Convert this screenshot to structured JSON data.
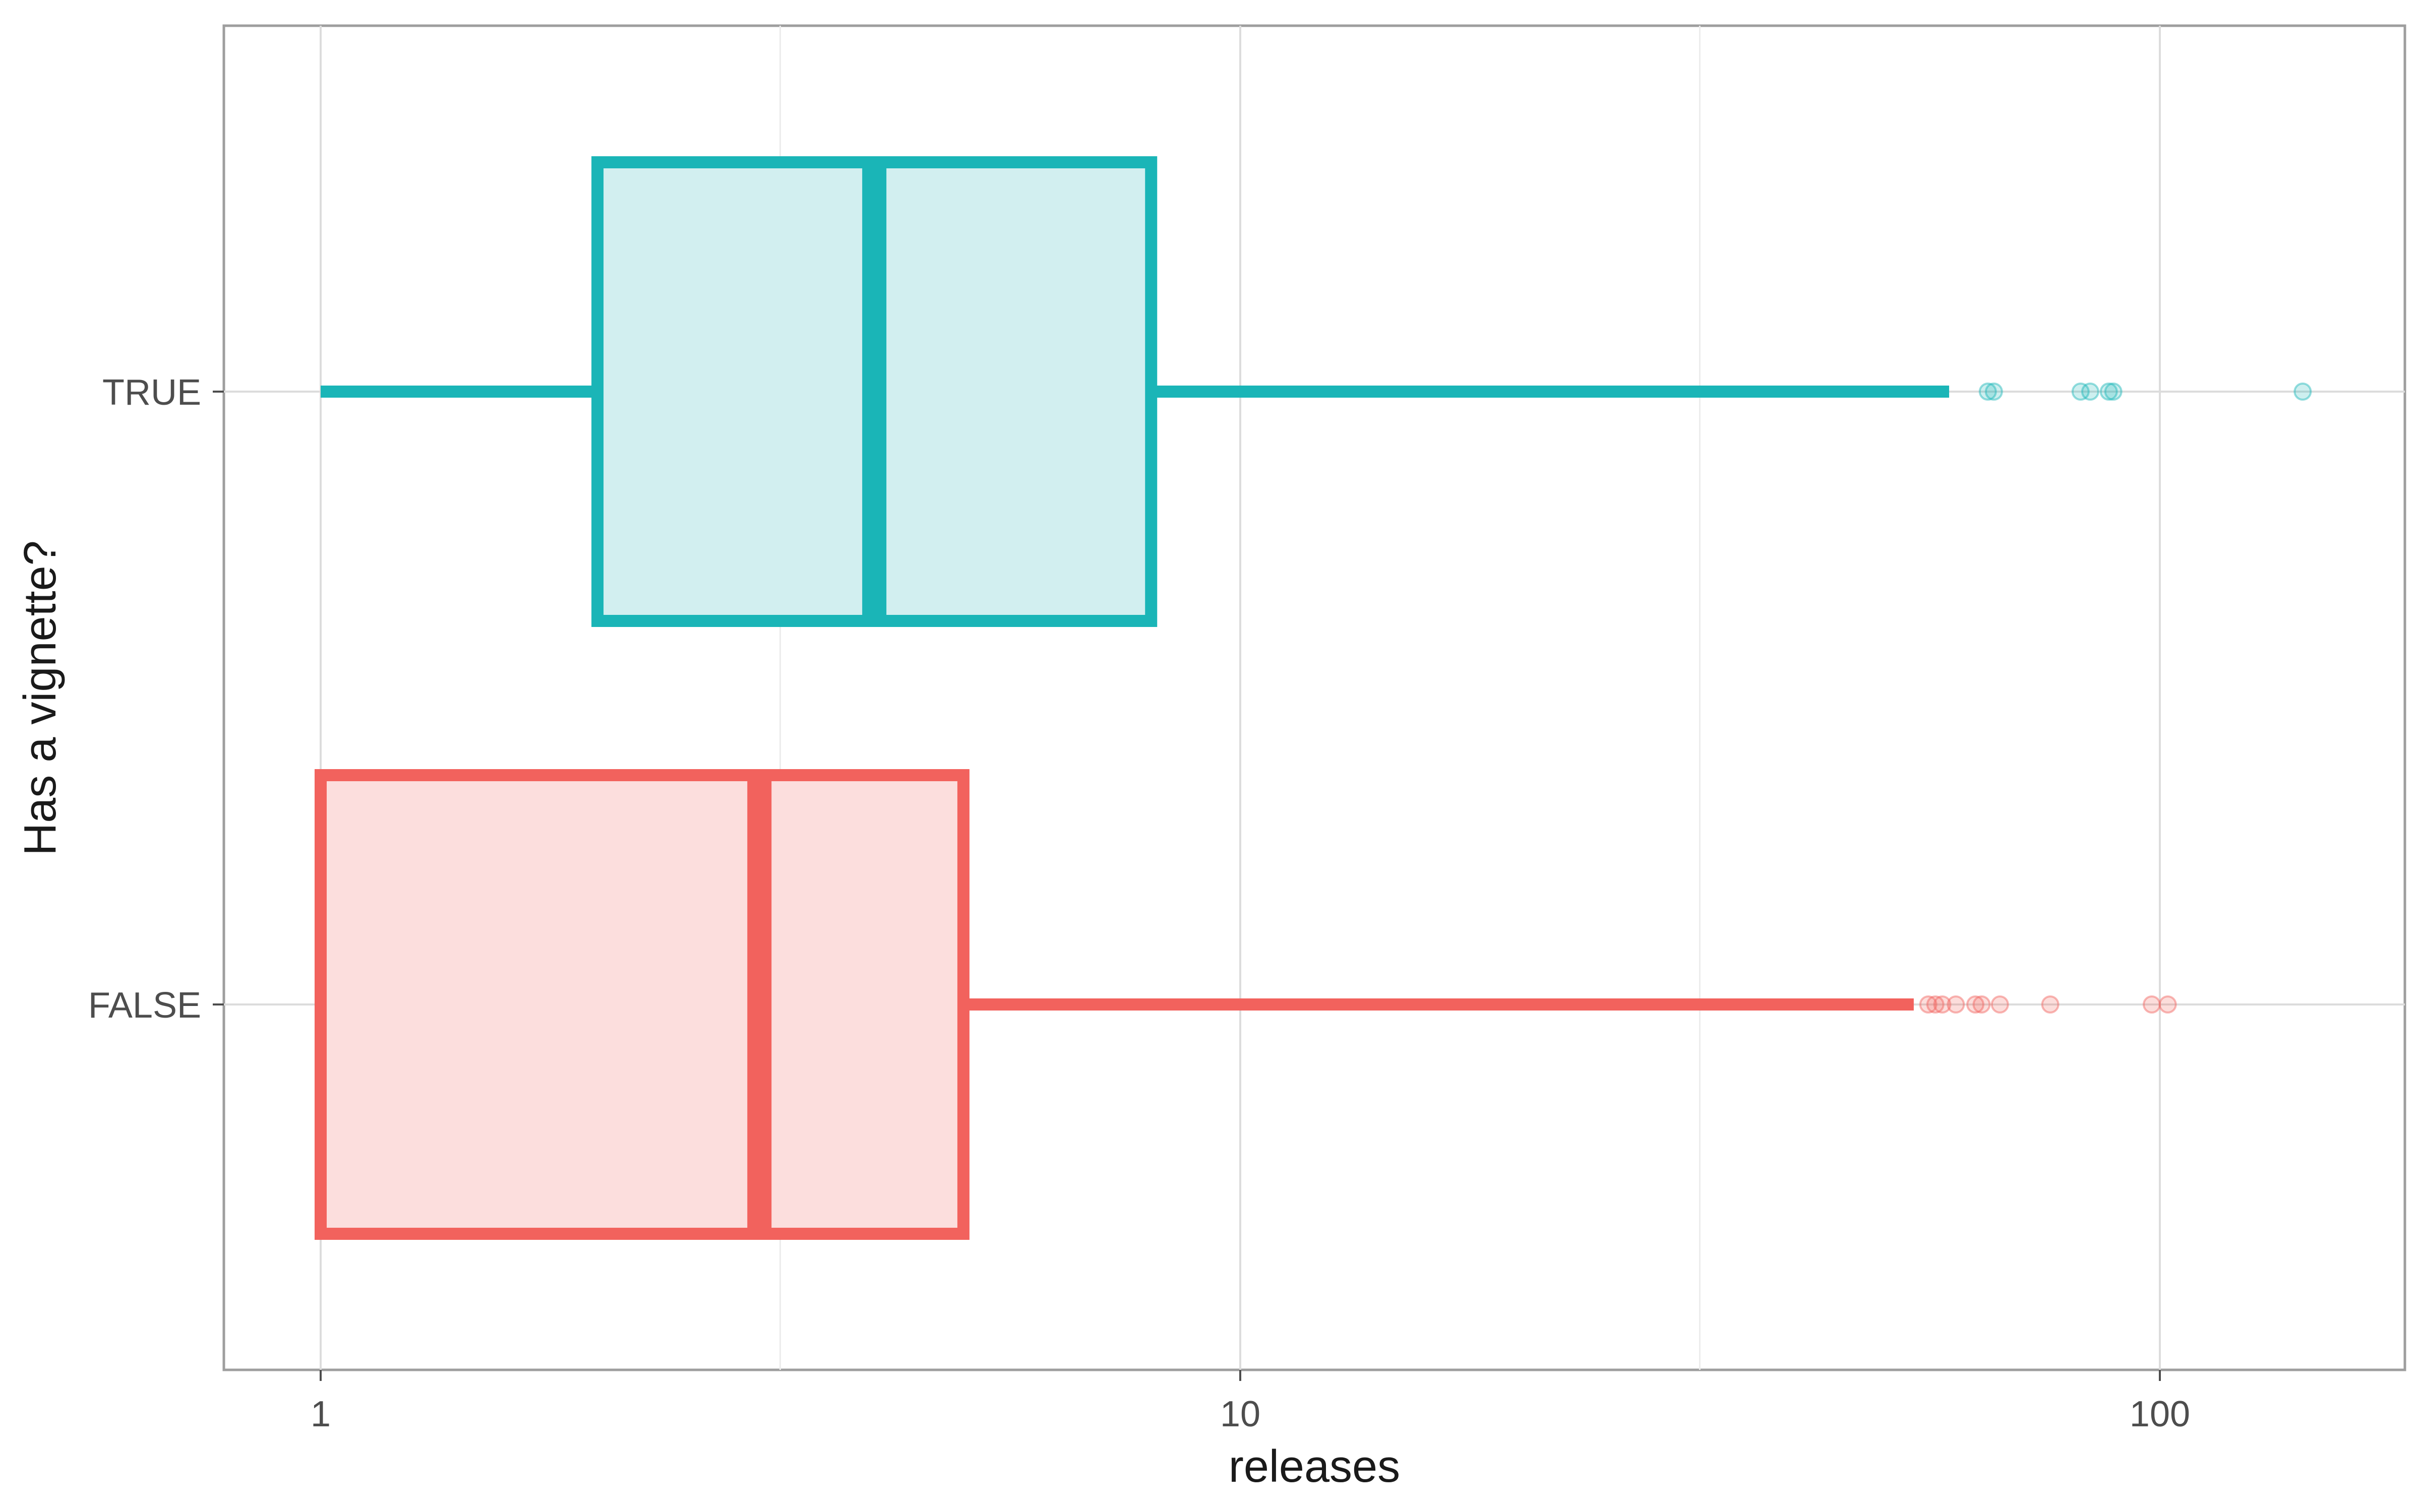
{
  "chart_data": {
    "type": "boxplot",
    "orientation": "horizontal",
    "xlabel": "releases",
    "ylabel": "Has a vignette?",
    "x_scale": "log10",
    "xlim": [
      0.78,
      170
    ],
    "x_ticks": [
      1,
      10,
      100
    ],
    "x_tick_labels": [
      "1",
      "10",
      "100"
    ],
    "x_minor_gridlines": [
      3.16,
      31.6
    ],
    "categories": [
      "TRUE",
      "FALSE"
    ],
    "grid": true,
    "legend": "none",
    "boxes": [
      {
        "category": "TRUE",
        "color": "#1AB5B7",
        "fill": "#D2EFF0",
        "whisker_low": 1,
        "q1": 2,
        "median": 4,
        "q3": 8,
        "whisker_high": 59,
        "outliers": [
          65,
          66,
          82,
          84,
          88,
          89,
          143
        ]
      },
      {
        "category": "FALSE",
        "color": "#F2625D",
        "fill": "#FCDEDD",
        "whisker_low": 1,
        "q1": 1,
        "median": 3,
        "q3": 5,
        "whisker_high": 54,
        "outliers": [
          56,
          57,
          58,
          60,
          63,
          64,
          67,
          76,
          98,
          102
        ]
      }
    ]
  }
}
